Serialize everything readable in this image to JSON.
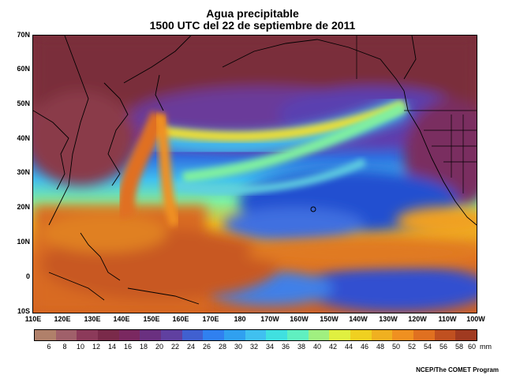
{
  "title": {
    "line1": "Agua precipitable",
    "line2": "1500 UTC del 22 de septiembre de 2011"
  },
  "latitude_labels": [
    "70N",
    "60N",
    "50N",
    "40N",
    "30N",
    "20N",
    "10N",
    "0",
    "10S"
  ],
  "longitude_labels": [
    "110E",
    "120E",
    "130E",
    "140E",
    "150E",
    "160E",
    "170E",
    "180",
    "170W",
    "160W",
    "150W",
    "140W",
    "130W",
    "120W",
    "110W",
    "100W"
  ],
  "colorbar": {
    "labels": [
      "6",
      "8",
      "10",
      "12",
      "14",
      "16",
      "18",
      "20",
      "22",
      "24",
      "26",
      "28",
      "30",
      "32",
      "34",
      "36",
      "38",
      "40",
      "42",
      "44",
      "46",
      "48",
      "50",
      "52",
      "54",
      "56",
      "58",
      "60"
    ],
    "units": "mm",
    "colors": [
      "#b0806a",
      "#a0606a",
      "#8c3a5a",
      "#7a2a4a",
      "#7a2860",
      "#6a3080",
      "#6040a0",
      "#4060d0",
      "#3080f0",
      "#30a0f0",
      "#40c0f0",
      "#40e0e0",
      "#60f0c0",
      "#a0f080",
      "#e0f040",
      "#f0d020",
      "#f0b020",
      "#f09020",
      "#e07020",
      "#c05020",
      "#a03a20"
    ]
  },
  "credit": "NCEP/The COMET Program",
  "field": {
    "name": "precipitable water",
    "units": "mm"
  }
}
